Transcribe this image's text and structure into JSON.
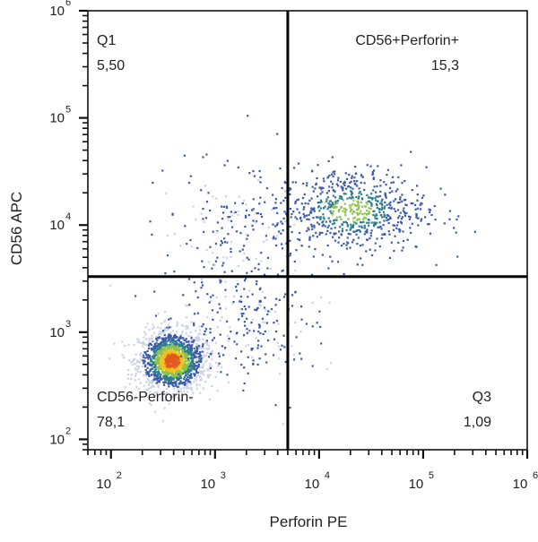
{
  "chart_data": {
    "type": "scatter",
    "subtype": "flow-cytometry-density-dot-plot",
    "xlabel": "Perforin PE",
    "ylabel": "CD56 APC",
    "x_scale": "log",
    "y_scale": "log",
    "xlim": [
      60,
      1000000
    ],
    "ylim": [
      80,
      1000000
    ],
    "x_ticks": [
      {
        "base": "10",
        "exp": "2",
        "value": 100
      },
      {
        "base": "10",
        "exp": "3",
        "value": 1000
      },
      {
        "base": "10",
        "exp": "4",
        "value": 10000
      },
      {
        "base": "10",
        "exp": "5",
        "value": 100000
      },
      {
        "base": "10",
        "exp": "6",
        "value": 1000000
      }
    ],
    "y_ticks": [
      {
        "base": "10",
        "exp": "2",
        "value": 100
      },
      {
        "base": "10",
        "exp": "3",
        "value": 1000
      },
      {
        "base": "10",
        "exp": "4",
        "value": 10000
      },
      {
        "base": "10",
        "exp": "5",
        "value": 100000
      },
      {
        "base": "10",
        "exp": "6",
        "value": 1000000
      }
    ],
    "gates": {
      "x_threshold": 5000,
      "y_threshold": 3300
    },
    "quadrants": {
      "top_left": {
        "name": "Q1",
        "percent": "5,50"
      },
      "top_right": {
        "name": "CD56+Perforin+",
        "percent": "15,3"
      },
      "bottom_left": {
        "name": "CD56-Perforin-",
        "percent": "78,1"
      },
      "bottom_right": {
        "name": "Q3",
        "percent": "1,09"
      }
    },
    "populations": [
      {
        "label_quadrant": "bottom_left",
        "center": [
          380,
          550
        ],
        "spread_log10": [
          0.16,
          0.14
        ],
        "events": 1500
      },
      {
        "label_quadrant": "top_right",
        "center": [
          20000,
          14000
        ],
        "spread_log10": [
          0.36,
          0.2
        ],
        "events": 700
      },
      {
        "label_quadrant": "top_left",
        "center": [
          1500,
          9000
        ],
        "spread_log10": [
          0.35,
          0.3
        ],
        "events": 180
      },
      {
        "label_quadrant": "bottom_left",
        "center": [
          1800,
          1200
        ],
        "spread_log10": [
          0.35,
          0.3
        ],
        "events": 250
      }
    ],
    "density_colors": [
      "#ced2e6",
      "#3b5aa8",
      "#2e7d8c",
      "#8cc34b",
      "#f0c020",
      "#e25a1c"
    ],
    "grid": false,
    "legend": "none"
  }
}
